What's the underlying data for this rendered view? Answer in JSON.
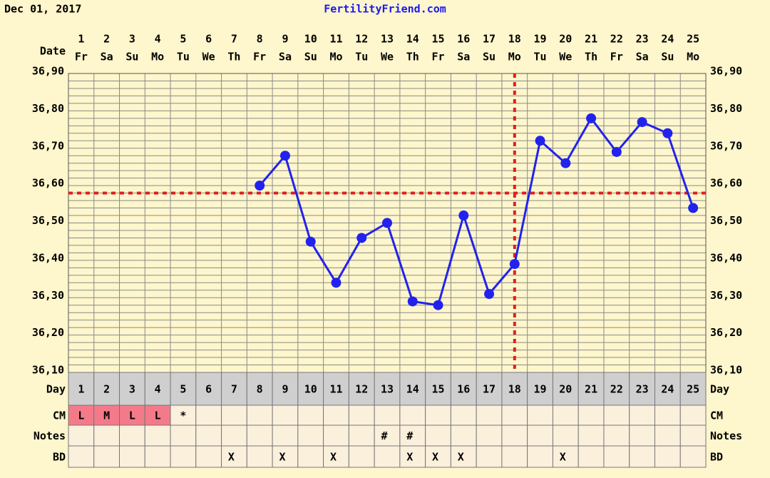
{
  "chart_data": {
    "type": "line",
    "title": "FertilityFriend.com",
    "date": "Dec 01, 2017",
    "date_label": "Date",
    "categories": [
      "1",
      "2",
      "3",
      "4",
      "5",
      "6",
      "7",
      "8",
      "9",
      "10",
      "11",
      "12",
      "13",
      "14",
      "15",
      "16",
      "17",
      "18",
      "19",
      "20",
      "21",
      "22",
      "23",
      "24",
      "25"
    ],
    "weekdays": [
      "Fr",
      "Sa",
      "Su",
      "Mo",
      "Tu",
      "We",
      "Th",
      "Fr",
      "Sa",
      "Su",
      "Mo",
      "Tu",
      "We",
      "Th",
      "Fr",
      "Sa",
      "Su",
      "Mo",
      "Tu",
      "We",
      "Th",
      "Fr",
      "Sa",
      "Su",
      "Mo"
    ],
    "series": [
      {
        "color": "#2222ee",
        "values": [
          null,
          null,
          null,
          null,
          null,
          null,
          null,
          36.6,
          36.68,
          36.45,
          36.34,
          36.46,
          36.5,
          36.29,
          36.28,
          36.52,
          36.31,
          36.39,
          36.72,
          36.66,
          36.78,
          36.69,
          36.77,
          36.74,
          36.54
        ]
      }
    ],
    "ylim": [
      36.1,
      36.9
    ],
    "yticks": [
      {
        "value": 36.1,
        "label": "36,10"
      },
      {
        "value": 36.2,
        "label": "36,20"
      },
      {
        "value": 36.3,
        "label": "36,30"
      },
      {
        "value": 36.4,
        "label": "36,40"
      },
      {
        "value": 36.5,
        "label": "36,50"
      },
      {
        "value": 36.6,
        "label": "36,60"
      },
      {
        "value": 36.7,
        "label": "36,70"
      },
      {
        "value": 36.8,
        "label": "36,80"
      },
      {
        "value": 36.9,
        "label": "36,90"
      }
    ],
    "coverline": 36.58,
    "ovulation_day": 18,
    "reference_color": "#e02020",
    "grid": true,
    "rows": [
      {
        "label": "Day"
      },
      {
        "label": "CM",
        "values": [
          "L",
          "M",
          "L",
          "L",
          "*",
          null,
          null,
          null,
          null,
          null,
          null,
          null,
          null,
          null,
          null,
          null,
          null,
          null,
          null,
          null,
          null,
          null,
          null,
          null,
          null
        ]
      },
      {
        "label": "Notes",
        "values": [
          null,
          null,
          null,
          null,
          null,
          null,
          null,
          null,
          null,
          null,
          null,
          null,
          "#",
          "#",
          null,
          null,
          null,
          null,
          null,
          null,
          null,
          null,
          null,
          null,
          null
        ]
      },
      {
        "label": "BD",
        "values": [
          null,
          null,
          null,
          null,
          null,
          null,
          "X",
          null,
          "X",
          null,
          "X",
          null,
          null,
          "X",
          "X",
          "X",
          null,
          null,
          null,
          "X",
          null,
          null,
          null,
          null,
          null
        ]
      }
    ],
    "period_days": [
      1,
      2,
      3,
      4
    ],
    "period_color": "#f47a8a"
  }
}
